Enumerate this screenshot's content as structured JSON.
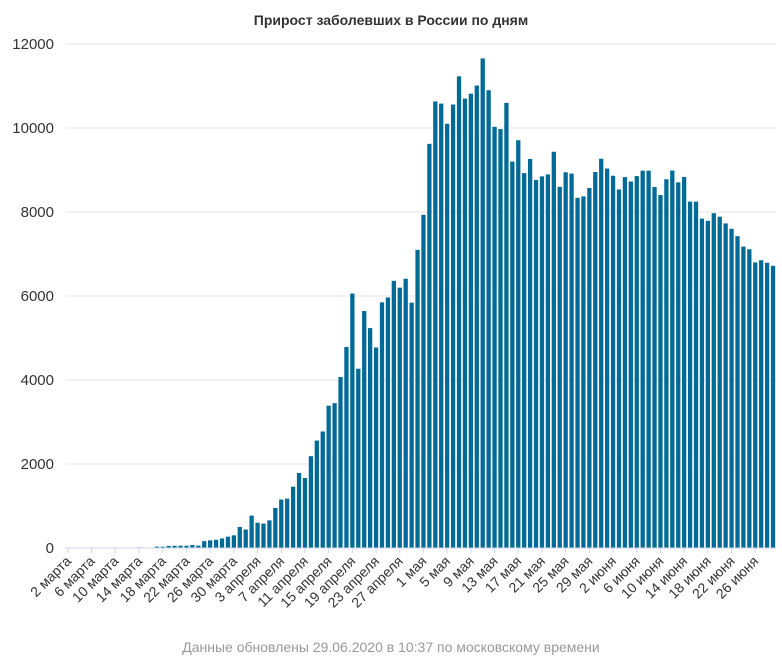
{
  "chart_data": {
    "type": "bar",
    "title": "Прирост заболевших в России по дням",
    "xlabel": "",
    "ylabel": "",
    "ylim": [
      0,
      12000
    ],
    "yticks": [
      0,
      2000,
      4000,
      6000,
      8000,
      10000,
      12000
    ],
    "grid": true,
    "legend": "none",
    "bar_color": "#016a96",
    "tick_labels": [
      {
        "label": "2 марта",
        "index": 0
      },
      {
        "label": "6 марта",
        "index": 4
      },
      {
        "label": "10 марта",
        "index": 8
      },
      {
        "label": "14 марта",
        "index": 12
      },
      {
        "label": "18 марта",
        "index": 16
      },
      {
        "label": "22 марта",
        "index": 20
      },
      {
        "label": "26 марта",
        "index": 24
      },
      {
        "label": "30 марта",
        "index": 28
      },
      {
        "label": "3 апреля",
        "index": 32
      },
      {
        "label": "7 апреля",
        "index": 36
      },
      {
        "label": "11 апреля",
        "index": 40
      },
      {
        "label": "15 апреля",
        "index": 44
      },
      {
        "label": "19 апреля",
        "index": 48
      },
      {
        "label": "23 апреля",
        "index": 52
      },
      {
        "label": "27 апреля",
        "index": 56
      },
      {
        "label": "1 мая",
        "index": 60
      },
      {
        "label": "5 мая",
        "index": 64
      },
      {
        "label": "9 мая",
        "index": 68
      },
      {
        "label": "13 мая",
        "index": 72
      },
      {
        "label": "17 мая",
        "index": 76
      },
      {
        "label": "21 мая",
        "index": 80
      },
      {
        "label": "25 мая",
        "index": 84
      },
      {
        "label": "29 мая",
        "index": 88
      },
      {
        "label": "2 июня",
        "index": 92
      },
      {
        "label": "6 июня",
        "index": 96
      },
      {
        "label": "10 июня",
        "index": 100
      },
      {
        "label": "14 июня",
        "index": 104
      },
      {
        "label": "18 июня",
        "index": 108
      },
      {
        "label": "22 июня",
        "index": 112
      },
      {
        "label": "26 июня",
        "index": 116
      }
    ],
    "values": [
      0,
      1,
      0,
      0,
      0,
      0,
      0,
      1,
      3,
      3,
      5,
      6,
      14,
      11,
      11,
      33,
      29,
      49,
      52,
      54,
      53,
      71,
      57,
      163,
      182,
      196,
      228,
      270,
      302,
      500,
      440,
      771,
      601,
      582,
      658,
      954,
      1154,
      1175,
      1459,
      1786,
      1667,
      2186,
      2558,
      2774,
      3388,
      3448,
      4070,
      4785,
      6060,
      4268,
      5642,
      5236,
      4774,
      5849,
      5966,
      6361,
      6198,
      6411,
      5841,
      7099,
      7933,
      9623,
      10633,
      10581,
      10102,
      10559,
      11231,
      10699,
      10817,
      11012,
      11656,
      10899,
      10028,
      9974,
      10598,
      9200,
      9709,
      8926,
      9263,
      8764,
      8849,
      8894,
      9434,
      8599,
      8946,
      8915,
      8338,
      8371,
      8572,
      8952,
      9268,
      9035,
      8863,
      8536,
      8831,
      8726,
      8855,
      8985,
      8984,
      8595,
      8404,
      8779,
      8987,
      8706,
      8835,
      8248,
      8246,
      7843,
      7790,
      7972,
      7889,
      7728,
      7600,
      7425,
      7176,
      7113,
      6800,
      6852,
      6791,
      6719
    ]
  },
  "footer_text": "Данные обновлены 29.06.2020 в 10:37 по московскому времени"
}
